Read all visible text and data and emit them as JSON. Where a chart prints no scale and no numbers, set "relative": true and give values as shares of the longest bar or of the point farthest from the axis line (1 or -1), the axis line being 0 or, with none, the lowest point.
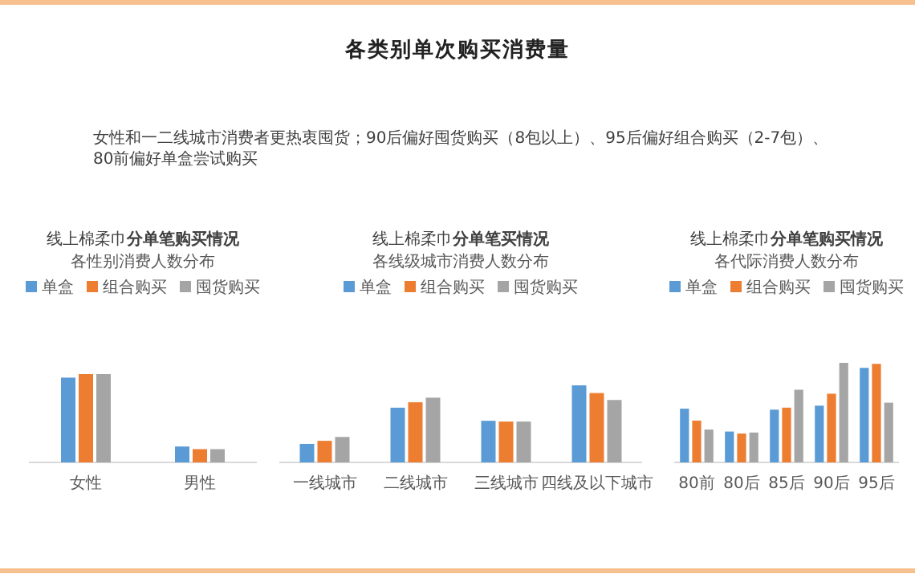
{
  "chart_data": [
    {
      "type": "other",
      "title": "各类别单次购买消费量",
      "annotations": [
        "女性和一二线城市消费者更热衷囤货；90后偏好囤货购买（8包以上）、95后偏好组合购买（2-7包）、80前偏好单盒尝试购买"
      ]
    },
    {
      "type": "bar",
      "title": "线上棉柔巾**分单笔购买情况**",
      "subtitle": "各性别消费人数分布",
      "categories": [
        "女性",
        "男性"
      ],
      "relative": true,
      "legend": "top",
      "series": [
        {
          "name": "单盒",
          "color": "#5b9bd5",
          "values": [
            0.96,
            0.18
          ]
        },
        {
          "name": "组合购买",
          "color": "#ed7d31",
          "values": [
            1,
            0.15
          ]
        },
        {
          "name": "囤货购买",
          "color": "#a5a5a5",
          "values": [
            1,
            0.15
          ]
        }
      ]
    },
    {
      "type": "bar",
      "title": "线上棉柔巾**分单笔买情况**",
      "subtitle": "各线级城市消费人数分布",
      "categories": [
        "一线城市",
        "二线城市",
        "三线城市",
        "四线及以下城市"
      ],
      "relative": true,
      "legend": "top",
      "series": [
        {
          "name": "单盒",
          "color": "#5b9bd5",
          "values": [
            0.24,
            0.71,
            0.54,
            1
          ]
        },
        {
          "name": "组合购买",
          "color": "#ed7d31",
          "values": [
            0.28,
            0.78,
            0.53,
            0.9
          ]
        },
        {
          "name": "囤货购买",
          "color": "#a5a5a5",
          "values": [
            0.33,
            0.84,
            0.53,
            0.81
          ]
        }
      ]
    },
    {
      "type": "bar",
      "title": "线上棉柔巾**分单笔购买情况**",
      "subtitle": "各代际消费人数分布",
      "categories": [
        "80前",
        "80后",
        "85后",
        "90后",
        "95后"
      ],
      "relative": true,
      "legend": "top",
      "series": [
        {
          "name": "单盒",
          "color": "#5b9bd5",
          "values": [
            0.54,
            0.31,
            0.53,
            0.57,
            0.95
          ]
        },
        {
          "name": "组合购买",
          "color": "#ed7d31",
          "values": [
            0.42,
            0.29,
            0.55,
            0.69,
            0.99
          ]
        },
        {
          "name": "囤货购买",
          "color": "#a5a5a5",
          "values": [
            0.33,
            0.3,
            0.73,
            1,
            0.6
          ]
        }
      ]
    }
  ]
}
